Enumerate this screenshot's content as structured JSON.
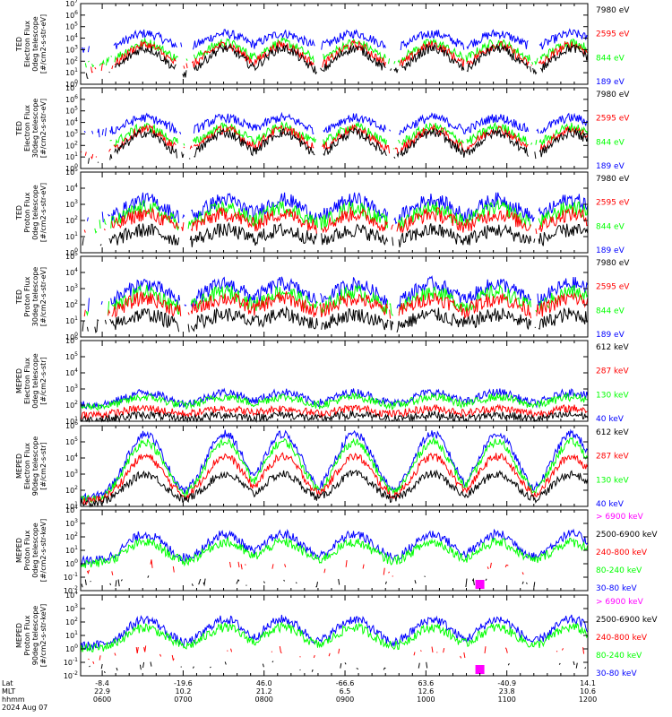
{
  "colors": {
    "blue": "#0000ff",
    "red": "#ff0000",
    "green": "#00ff00",
    "black": "#000000",
    "magenta": "#ff00ff"
  },
  "panels": [
    {
      "ylabel": [
        "TED",
        "Electron Flux",
        "0deg telescope",
        "[#/cm2-s-str-eV]"
      ],
      "ytick_exponents": [
        0,
        1,
        2,
        3,
        4,
        5,
        6,
        7
      ],
      "ylim_exp": [
        0,
        7
      ],
      "legend": [
        {
          "label": "7980 eV",
          "color": "black"
        },
        {
          "label": "2595 eV",
          "color": "red"
        },
        {
          "label": "844 eV",
          "color": "green"
        },
        {
          "label": "189 eV",
          "color": "blue"
        }
      ],
      "kind": "ted_e0"
    },
    {
      "ylabel": [
        "TED",
        "Electron Flux",
        "30deg telescope",
        "[#/cm2-s-str-eV]"
      ],
      "ytick_exponents": [
        0,
        1,
        2,
        3,
        4,
        5,
        6,
        7
      ],
      "ylim_exp": [
        0,
        7
      ],
      "legend": [
        {
          "label": "7980 eV",
          "color": "black"
        },
        {
          "label": "2595 eV",
          "color": "red"
        },
        {
          "label": "844 eV",
          "color": "green"
        },
        {
          "label": "189 eV",
          "color": "blue"
        }
      ],
      "kind": "ted_e30"
    },
    {
      "ylabel": [
        "TED",
        "Proton Flux",
        "0deg telescope",
        "[#/cm2-s-str-eV]"
      ],
      "ytick_exponents": [
        0,
        1,
        2,
        3,
        4,
        5
      ],
      "ylim_exp": [
        0,
        5
      ],
      "legend": [
        {
          "label": "7980 eV",
          "color": "black"
        },
        {
          "label": "2595 eV",
          "color": "red"
        },
        {
          "label": "844 eV",
          "color": "green"
        },
        {
          "label": "189 eV",
          "color": "blue"
        }
      ],
      "kind": "ted_p0"
    },
    {
      "ylabel": [
        "TED",
        "Proton Flux",
        "30deg telescope",
        "[#/cm2-s-str-eV]"
      ],
      "ytick_exponents": [
        0,
        1,
        2,
        3,
        4,
        5
      ],
      "ylim_exp": [
        0,
        5
      ],
      "legend": [
        {
          "label": "7980 eV",
          "color": "black"
        },
        {
          "label": "2595 eV",
          "color": "red"
        },
        {
          "label": "844 eV",
          "color": "green"
        },
        {
          "label": "189 eV",
          "color": "blue"
        }
      ],
      "kind": "ted_p30"
    },
    {
      "ylabel": [
        "MEPED",
        "Electron Flux",
        "0deg telescope",
        "[#/cm2-s-str]"
      ],
      "ytick_exponents": [
        1,
        2,
        3,
        4,
        5,
        6
      ],
      "ylim_exp": [
        1,
        6
      ],
      "legend": [
        {
          "label": "612 keV",
          "color": "black"
        },
        {
          "label": "287 keV",
          "color": "red"
        },
        {
          "label": "130 keV",
          "color": "green"
        },
        {
          "label": "40 keV",
          "color": "blue"
        }
      ],
      "kind": "meped_e0"
    },
    {
      "ylabel": [
        "MEPED",
        "Electron Flux",
        "90deg telescope",
        "[#/cm2-s-str]"
      ],
      "ytick_exponents": [
        1,
        2,
        3,
        4,
        5,
        6
      ],
      "ylim_exp": [
        1,
        6
      ],
      "legend": [
        {
          "label": "612 keV",
          "color": "black"
        },
        {
          "label": "287 keV",
          "color": "red"
        },
        {
          "label": "130 keV",
          "color": "green"
        },
        {
          "label": "40 keV",
          "color": "blue"
        }
      ],
      "kind": "meped_e90"
    },
    {
      "ylabel": [
        "MEPED",
        "Proton Flux",
        "0deg telescope",
        "[#/cm2-s-str-keV]"
      ],
      "ytick_exponents": [
        -2,
        -1,
        0,
        1,
        2,
        3,
        4
      ],
      "ylim_exp": [
        -2,
        4
      ],
      "legend": [
        {
          "label": "> 6900 keV",
          "color": "magenta"
        },
        {
          "label": "2500-6900 keV",
          "color": "black"
        },
        {
          "label": "240-800 keV",
          "color": "red"
        },
        {
          "label": "80-240 keV",
          "color": "green"
        },
        {
          "label": "30-80 keV",
          "color": "blue"
        }
      ],
      "kind": "meped_p0"
    },
    {
      "ylabel": [
        "MEPED",
        "Proton Flux",
        "90deg telescope",
        "[#/cm2-s-str-keV]"
      ],
      "ytick_exponents": [
        -2,
        -1,
        0,
        1,
        2,
        3,
        4
      ],
      "ylim_exp": [
        -2,
        4
      ],
      "legend": [
        {
          "label": "> 6900 keV",
          "color": "magenta"
        },
        {
          "label": "2500-6900 keV",
          "color": "black"
        },
        {
          "label": "240-800 keV",
          "color": "red"
        },
        {
          "label": "80-240 keV",
          "color": "green"
        },
        {
          "label": "30-80 keV",
          "color": "blue"
        }
      ],
      "kind": "meped_p90"
    }
  ],
  "x_axis": {
    "row_labels": [
      "Lat",
      "MLT",
      "hhmm",
      "2024 Aug 07"
    ],
    "ticks": [
      {
        "lat": "-8.4",
        "mlt": "22.9",
        "hhmm": "0600"
      },
      {
        "lat": "-19.6",
        "mlt": "10.2",
        "hhmm": "0700"
      },
      {
        "lat": "46.0",
        "mlt": "21.2",
        "hhmm": "0800"
      },
      {
        "lat": "-66.6",
        "mlt": "6.5",
        "hhmm": "0900"
      },
      {
        "lat": "63.6",
        "mlt": "12.6",
        "hhmm": "1000"
      },
      {
        "lat": "-40.9",
        "mlt": "23.8",
        "hhmm": "1100"
      },
      {
        "lat": "14.1",
        "mlt": "10.6",
        "hhmm": "1200"
      }
    ]
  },
  "chart_data": {
    "type": "line",
    "yscale": "log",
    "x_time_range": [
      "0600",
      "1200"
    ],
    "panels_count": 8
  }
}
